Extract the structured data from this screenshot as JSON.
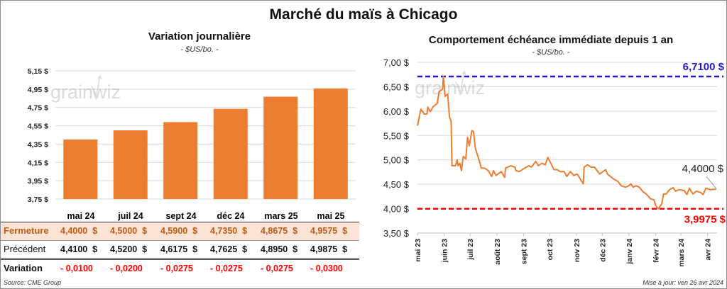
{
  "title": "Marché du maïs à Chicago",
  "source": "Source: CME Group",
  "updated": "Mise à jour: ven 26 avr 2024",
  "watermark": "grainwiz",
  "colors": {
    "bar": "#ed7d31",
    "line": "#ed7d31",
    "max": "#2317c9",
    "min": "#ff0000",
    "fermeture_bg": "#fbe4d5",
    "fermeture_text": "#c55a11",
    "variation_text": "#ff0000"
  },
  "table": {
    "columns": [
      "mai 24",
      "juil 24",
      "sept 24",
      "déc 24",
      "mars 25",
      "mai 25"
    ],
    "rows": [
      {
        "label": "Fermeture",
        "values": [
          "4,4000  $",
          "4,5000  $",
          "4,5900  $",
          "4,7350  $",
          "4,8675  $",
          "4,9575  $"
        ]
      },
      {
        "label": "Précédent",
        "values": [
          "4,4100  $",
          "4,5200  $",
          "4,6175  $",
          "4,7625  $",
          "4,8950  $",
          "4,9875  $"
        ]
      },
      {
        "label": "Variation",
        "values": [
          "- 0,0100",
          "- 0,0200",
          "- 0,0275",
          "- 0,0275",
          "- 0,0275",
          "- 0,0300"
        ]
      }
    ]
  },
  "chart_data": [
    {
      "type": "bar",
      "title": "Variation journalière",
      "subtitle": "- $US/bo. -",
      "categories": [
        "mai 24",
        "juil 24",
        "sept 24",
        "déc 24",
        "mars 25",
        "mai 25"
      ],
      "values": [
        4.4,
        4.5,
        4.59,
        4.735,
        4.8675,
        4.9575
      ],
      "ylim": [
        3.75,
        5.15
      ],
      "yticks": [
        "3,75 $",
        "3,95 $",
        "4,15 $",
        "4,35 $",
        "4,55 $",
        "4,75 $",
        "4,95 $",
        "5,15 $"
      ],
      "grid": true
    },
    {
      "type": "line",
      "title": "Comportement échéance immédiate depuis 1 an",
      "subtitle": "- $US/bo. -",
      "ylim": [
        3.5,
        7.0
      ],
      "yticks": [
        "3,50 $",
        "4,00 $",
        "4,50 $",
        "5,00 $",
        "5,50 $",
        "6,00 $",
        "6,50 $",
        "7,00 $"
      ],
      "xticks": [
        "mai 23",
        "juin 23",
        "juil 23",
        "août 23",
        "sept 23",
        "oct 23",
        "nov 23",
        "déc 23",
        "janv 24",
        "févr 24",
        "mars 24",
        "avr 24"
      ],
      "grid": true,
      "max": {
        "value": 6.71,
        "label": "6,7100 $"
      },
      "min": {
        "value": 3.9975,
        "label": "3,9975 $"
      },
      "last": {
        "value": 4.4,
        "label": "4,4000 $"
      },
      "points": [
        [
          "2023-05-01",
          5.7
        ],
        [
          "2023-05-05",
          6.04
        ],
        [
          "2023-05-09",
          5.94
        ],
        [
          "2023-05-12",
          5.94
        ],
        [
          "2023-05-13",
          6.08
        ],
        [
          "2023-05-16",
          5.99
        ],
        [
          "2023-05-19",
          6.09
        ],
        [
          "2023-05-24",
          6.16
        ],
        [
          "2023-05-26",
          6.4
        ],
        [
          "2023-05-30",
          6.45
        ],
        [
          "2023-05-31",
          6.71
        ],
        [
          "2023-06-02",
          6.3
        ],
        [
          "2023-06-05",
          6.35
        ],
        [
          "2023-06-07",
          5.89
        ],
        [
          "2023-06-09",
          5.79
        ],
        [
          "2023-06-10",
          4.88
        ],
        [
          "2023-06-14",
          4.88
        ],
        [
          "2023-06-16",
          5.0
        ],
        [
          "2023-06-17",
          4.88
        ],
        [
          "2023-06-19",
          4.93
        ],
        [
          "2023-06-21",
          4.78
        ],
        [
          "2023-06-23",
          5.07
        ],
        [
          "2023-06-26",
          5.02
        ],
        [
          "2023-06-28",
          5.46
        ],
        [
          "2023-06-30",
          5.29
        ],
        [
          "2023-07-03",
          5.6
        ],
        [
          "2023-07-05",
          5.58
        ],
        [
          "2023-07-07",
          5.24
        ],
        [
          "2023-07-11",
          5.02
        ],
        [
          "2023-07-14",
          4.83
        ],
        [
          "2023-07-18",
          4.83
        ],
        [
          "2023-07-22",
          4.78
        ],
        [
          "2023-07-26",
          4.66
        ],
        [
          "2023-07-28",
          4.78
        ],
        [
          "2023-07-31",
          4.68
        ],
        [
          "2023-08-06",
          4.76
        ],
        [
          "2023-08-10",
          4.64
        ],
        [
          "2023-08-11",
          4.83
        ],
        [
          "2023-08-17",
          4.88
        ],
        [
          "2023-08-22",
          4.85
        ],
        [
          "2023-08-23",
          4.78
        ],
        [
          "2023-08-27",
          4.76
        ],
        [
          "2023-09-02",
          4.83
        ],
        [
          "2023-09-07",
          4.88
        ],
        [
          "2023-09-10",
          4.85
        ],
        [
          "2023-09-15",
          4.97
        ],
        [
          "2023-09-18",
          4.88
        ],
        [
          "2023-09-22",
          4.93
        ],
        [
          "2023-09-26",
          4.9
        ],
        [
          "2023-09-29",
          5.05
        ],
        [
          "2023-10-02",
          4.95
        ],
        [
          "2023-10-06",
          4.8
        ],
        [
          "2023-10-10",
          4.8
        ],
        [
          "2023-10-13",
          4.76
        ],
        [
          "2023-10-18",
          4.76
        ],
        [
          "2023-10-21",
          4.66
        ],
        [
          "2023-10-25",
          4.76
        ],
        [
          "2023-10-29",
          4.68
        ],
        [
          "2023-11-02",
          4.71
        ],
        [
          "2023-11-09",
          4.51
        ],
        [
          "2023-11-10",
          4.85
        ],
        [
          "2023-11-14",
          4.9
        ],
        [
          "2023-11-18",
          4.85
        ],
        [
          "2023-11-22",
          4.85
        ],
        [
          "2023-11-28",
          4.71
        ],
        [
          "2023-12-05",
          4.8
        ],
        [
          "2023-12-07",
          4.71
        ],
        [
          "2023-12-14",
          4.61
        ],
        [
          "2023-12-19",
          4.56
        ],
        [
          "2023-12-23",
          4.47
        ],
        [
          "2023-12-28",
          4.44
        ],
        [
          "2024-01-01",
          4.47
        ],
        [
          "2024-01-03",
          4.51
        ],
        [
          "2024-01-06",
          4.44
        ],
        [
          "2024-01-09",
          4.47
        ],
        [
          "2024-01-13",
          4.44
        ],
        [
          "2024-01-17",
          4.35
        ],
        [
          "2024-01-21",
          4.3
        ],
        [
          "2024-01-26",
          4.2
        ],
        [
          "2024-01-30",
          4.18
        ],
        [
          "2024-02-01",
          4.06
        ],
        [
          "2024-02-04",
          4.0
        ],
        [
          "2024-02-08",
          4.1
        ],
        [
          "2024-02-10",
          4.3
        ],
        [
          "2024-02-13",
          4.3
        ],
        [
          "2024-02-17",
          4.39
        ],
        [
          "2024-02-21",
          4.43
        ],
        [
          "2024-02-24",
          4.36
        ],
        [
          "2024-02-28",
          4.39
        ],
        [
          "2024-03-05",
          4.37
        ],
        [
          "2024-03-08",
          4.29
        ],
        [
          "2024-03-11",
          4.42
        ],
        [
          "2024-03-15",
          4.3
        ],
        [
          "2024-03-19",
          4.36
        ],
        [
          "2024-03-24",
          4.33
        ],
        [
          "2024-03-27",
          4.29
        ],
        [
          "2024-03-30",
          4.42
        ],
        [
          "2024-04-04",
          4.39
        ],
        [
          "2024-04-11",
          4.4
        ]
      ]
    }
  ]
}
